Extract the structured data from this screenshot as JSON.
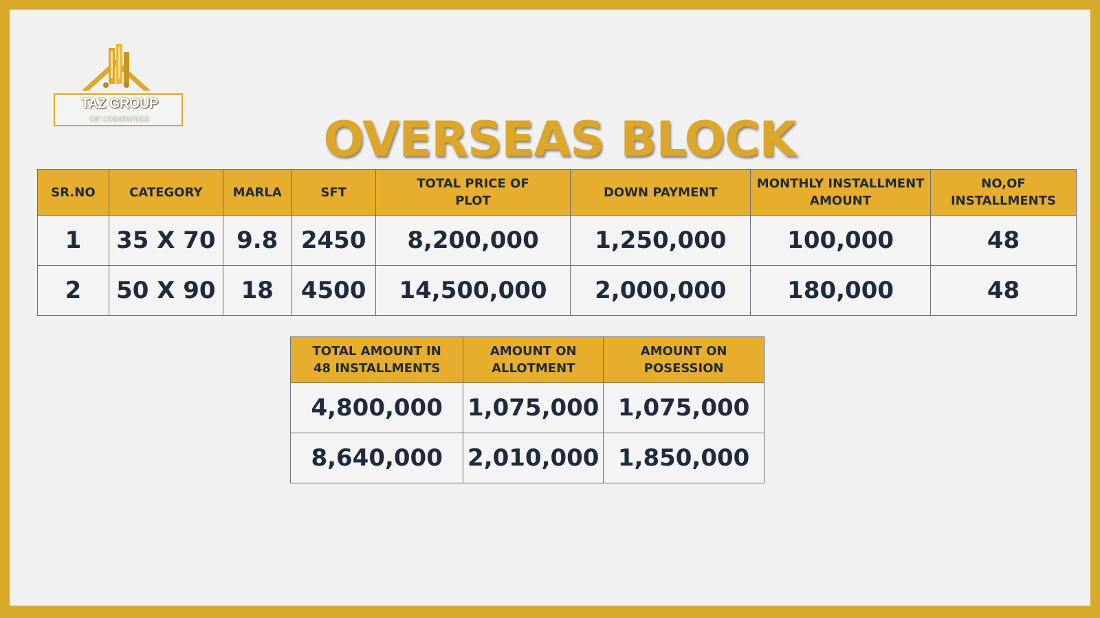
{
  "brand": {
    "name": "TAZ GROUP",
    "subtitle": "OF COMPANIES",
    "accent": "#dca62a",
    "border": "#d9a92a"
  },
  "title": "OVERSEAS BLOCK",
  "plan_table": {
    "headers": [
      "SR.NO",
      "CATEGORY",
      "MARLA",
      "SFT",
      "TOTAL PRICE OF PLOT",
      "DOWN PAYMENT",
      "MONTHLY INSTALLMENT AMOUNT",
      "NO,OF INSTALLMENTS"
    ],
    "rows": [
      [
        "1",
        "35 X 70",
        "9.8",
        "2450",
        "8,200,000",
        "1,250,000",
        "100,000",
        "48"
      ],
      [
        "2",
        "50 X 90",
        "18",
        "4500",
        "14,500,000",
        "2,000,000",
        "180,000",
        "48"
      ]
    ]
  },
  "summary_table": {
    "headers": [
      "TOTAL AMOUNT IN 48 INSTALLMENTS",
      "AMOUNT ON ALLOTMENT",
      "AMOUNT ON POSESSION"
    ],
    "rows": [
      [
        "4,800,000",
        "1,075,000",
        "1,075,000"
      ],
      [
        "8,640,000",
        "2,010,000",
        "1,850,000"
      ]
    ]
  }
}
